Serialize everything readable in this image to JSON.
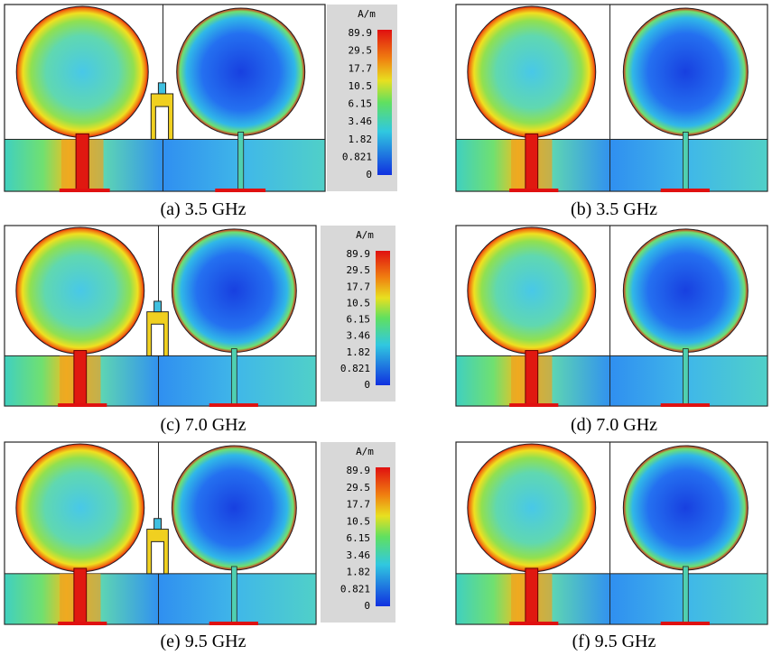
{
  "panels": [
    {
      "caption": "(a) 3.5 GHz"
    },
    {
      "caption": "(b) 3.5 GHz"
    },
    {
      "caption": "(c) 7.0 GHz"
    },
    {
      "caption": "(d) 7.0 GHz"
    },
    {
      "caption": "(e) 9.5 GHz"
    },
    {
      "caption": "(f) 9.5 GHz"
    }
  ],
  "colorbars": [
    {
      "unit": "A/m",
      "labels": [
        "89.9",
        "29.5",
        "17.7",
        "10.5",
        "6.15",
        "3.46",
        "1.82",
        "0.821",
        "0"
      ]
    },
    {
      "unit": "A/m",
      "labels": [
        "89.9",
        "29.5",
        "17.7",
        "10.5",
        "6.15",
        "3.46",
        "1.82",
        "0.821",
        "0"
      ]
    },
    {
      "unit": "A/m",
      "labels": [
        "89.9",
        "29.5",
        "17.7",
        "10.5",
        "6.15",
        "3.46",
        "1.82",
        "0.821",
        "0"
      ]
    }
  ]
}
